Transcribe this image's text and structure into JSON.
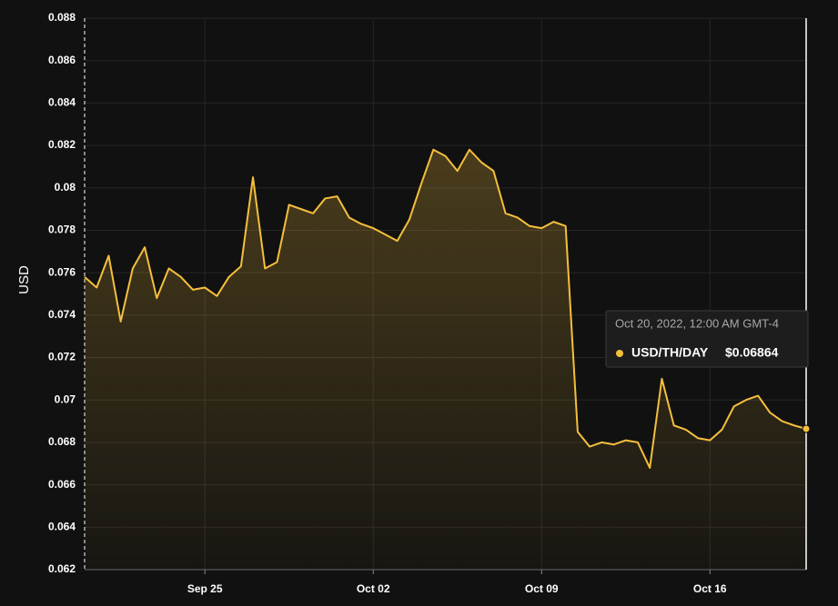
{
  "chart_data": {
    "type": "line",
    "y_label": "USD",
    "x": [
      "2022-09-20T00:00",
      "2022-09-20T12:00",
      "2022-09-21T00:00",
      "2022-09-21T12:00",
      "2022-09-22T00:00",
      "2022-09-22T12:00",
      "2022-09-23T00:00",
      "2022-09-23T12:00",
      "2022-09-24T00:00",
      "2022-09-24T12:00",
      "2022-09-25T00:00",
      "2022-09-25T12:00",
      "2022-09-26T00:00",
      "2022-09-26T12:00",
      "2022-09-27T00:00",
      "2022-09-27T12:00",
      "2022-09-28T00:00",
      "2022-09-28T12:00",
      "2022-09-29T00:00",
      "2022-09-29T12:00",
      "2022-09-30T00:00",
      "2022-09-30T12:00",
      "2022-10-01T00:00",
      "2022-10-01T12:00",
      "2022-10-02T00:00",
      "2022-10-02T12:00",
      "2022-10-03T00:00",
      "2022-10-03T12:00",
      "2022-10-04T00:00",
      "2022-10-04T12:00",
      "2022-10-05T00:00",
      "2022-10-05T12:00",
      "2022-10-06T00:00",
      "2022-10-06T12:00",
      "2022-10-07T00:00",
      "2022-10-07T12:00",
      "2022-10-08T00:00",
      "2022-10-08T12:00",
      "2022-10-09T00:00",
      "2022-10-09T12:00",
      "2022-10-10T00:00",
      "2022-10-10T12:00",
      "2022-10-11T00:00",
      "2022-10-11T12:00",
      "2022-10-12T00:00",
      "2022-10-12T12:00",
      "2022-10-13T00:00",
      "2022-10-13T12:00",
      "2022-10-14T00:00",
      "2022-10-14T12:00",
      "2022-10-15T00:00",
      "2022-10-15T12:00",
      "2022-10-16T00:00",
      "2022-10-16T12:00",
      "2022-10-17T00:00",
      "2022-10-17T12:00",
      "2022-10-18T00:00",
      "2022-10-18T12:00",
      "2022-10-19T00:00",
      "2022-10-19T12:00",
      "2022-10-20T00:00"
    ],
    "series": [
      {
        "name": "USD/TH/DAY",
        "color": "#f5bf3c",
        "values": [
          0.0758,
          0.0753,
          0.0768,
          0.0737,
          0.0762,
          0.0772,
          0.0748,
          0.0762,
          0.0758,
          0.0752,
          0.0753,
          0.0749,
          0.0758,
          0.0763,
          0.0805,
          0.0762,
          0.0765,
          0.0792,
          0.079,
          0.0788,
          0.0795,
          0.0796,
          0.0786,
          0.0783,
          0.0781,
          0.0778,
          0.0775,
          0.0785,
          0.0802,
          0.0818,
          0.0815,
          0.0808,
          0.0818,
          0.0812,
          0.0808,
          0.0788,
          0.0786,
          0.0782,
          0.0781,
          0.0784,
          0.0782,
          0.0685,
          0.0678,
          0.068,
          0.0679,
          0.0681,
          0.068,
          0.0668,
          0.071,
          0.0688,
          0.0686,
          0.0682,
          0.0681,
          0.0686,
          0.0697,
          0.07,
          0.0702,
          0.0694,
          0.069,
          0.0688,
          0.06864
        ]
      }
    ],
    "xlim": [
      "2022-09-20T00:00",
      "2022-10-20T00:00"
    ],
    "xticks": [
      {
        "value": "2022-09-25T00:00",
        "label": "Sep 25"
      },
      {
        "value": "2022-10-02T00:00",
        "label": "Oct 02"
      },
      {
        "value": "2022-10-09T00:00",
        "label": "Oct 09"
      },
      {
        "value": "2022-10-16T00:00",
        "label": "Oct 16"
      }
    ],
    "ylim": [
      0.062,
      0.088
    ],
    "yticks": [
      0.062,
      0.064,
      0.066,
      0.068,
      0.07,
      0.072,
      0.074,
      0.076,
      0.078,
      0.08,
      0.082,
      0.084,
      0.086,
      0.088
    ],
    "grid": true,
    "tooltip": {
      "title": "Oct 20, 2022, 12:00 AM GMT-4",
      "value": "$0.06864"
    }
  }
}
